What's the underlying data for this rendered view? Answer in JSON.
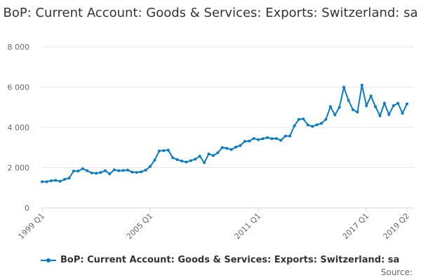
{
  "chart_data": {
    "type": "line",
    "title": "BoP: Current Account: Goods & Services: Exports: Switzerland: sa",
    "source_label": "Source:",
    "ylim": [
      0,
      8000
    ],
    "yticks": [
      0,
      2000,
      4000,
      6000,
      8000
    ],
    "ytick_labels": [
      "0",
      "2 000",
      "4 000",
      "6 000",
      "8 000"
    ],
    "xtick_labels": [
      "1999 Q1",
      "2005 Q1",
      "2011 Q1",
      "2017 Q1",
      "2019 Q2"
    ],
    "grid": true,
    "legend_position": "bottom",
    "color": "#0a7bc1",
    "x_start": "1999 Q1",
    "x_end": "2019 Q2",
    "series": [
      {
        "name": "BoP: Current Account: Goods & Services: Exports: Switzerland: sa",
        "values": [
          1300,
          1300,
          1350,
          1370,
          1320,
          1420,
          1480,
          1830,
          1830,
          1950,
          1850,
          1740,
          1720,
          1760,
          1850,
          1690,
          1890,
          1850,
          1860,
          1880,
          1780,
          1760,
          1790,
          1880,
          2060,
          2380,
          2830,
          2850,
          2870,
          2490,
          2400,
          2330,
          2280,
          2350,
          2420,
          2570,
          2250,
          2680,
          2600,
          2740,
          3000,
          2960,
          2900,
          3020,
          3100,
          3310,
          3320,
          3450,
          3390,
          3440,
          3490,
          3440,
          3450,
          3360,
          3570,
          3570,
          4080,
          4400,
          4420,
          4120,
          4050,
          4130,
          4200,
          4400,
          5030,
          4620,
          5000,
          5990,
          5350,
          4880,
          4760,
          6100,
          5080,
          5560,
          5030,
          4580,
          5200,
          4640,
          5080,
          5200,
          4700,
          5170
        ]
      }
    ]
  }
}
